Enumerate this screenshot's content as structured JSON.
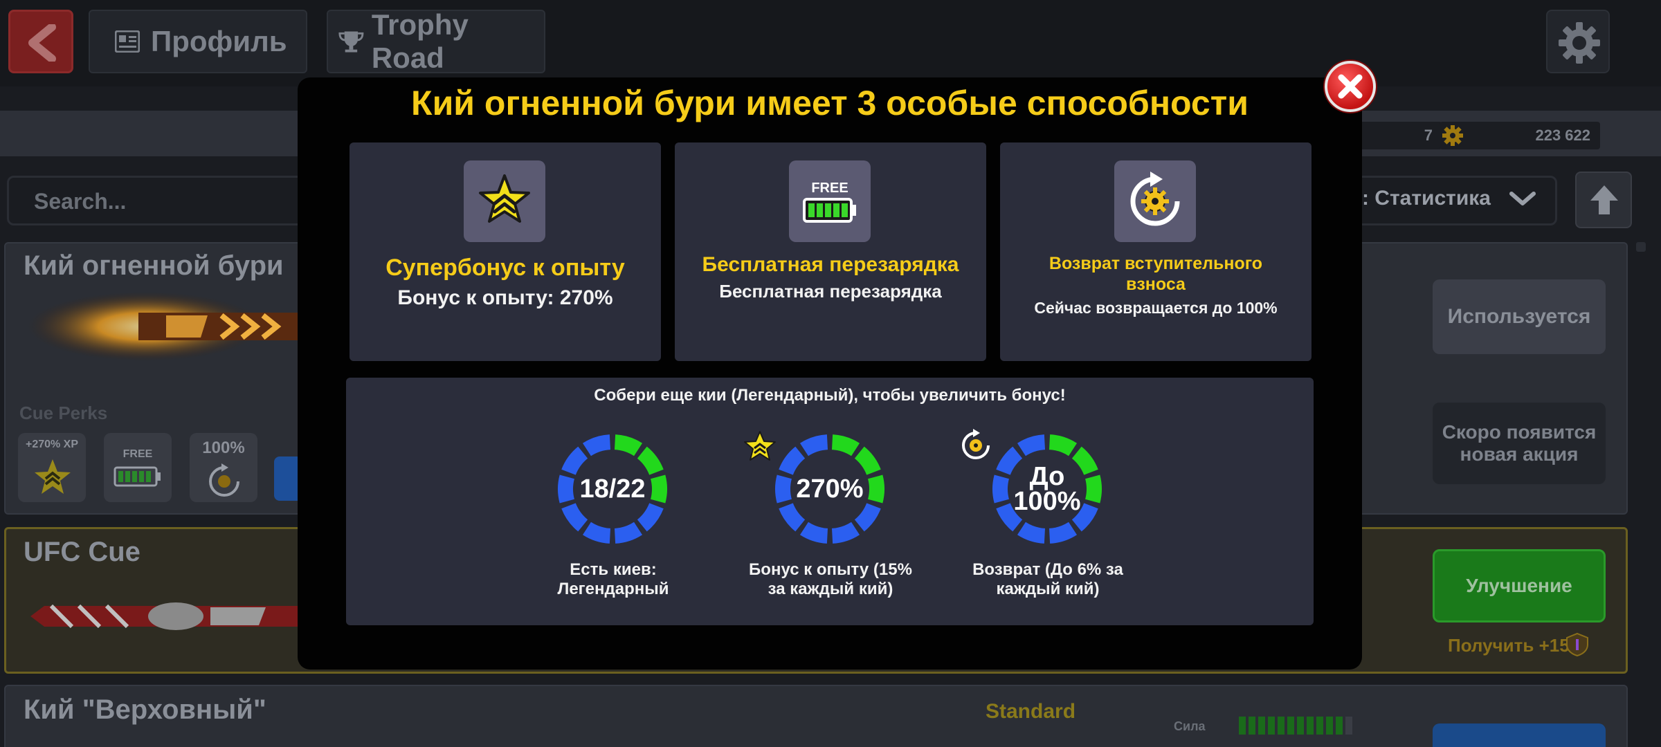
{
  "topbar": {
    "profile_tab": "Профиль",
    "trophy_tab": "Trophy Road"
  },
  "stats": {
    "level_value": "7",
    "coins_value": "223 622"
  },
  "search": {
    "placeholder": "Search...",
    "sort_label": "о: Статистика"
  },
  "cue_list": {
    "card1_title": "Кий огненной бури",
    "cue_perks_label": "Cue Perks",
    "perk_tile_xp": "+270% XP",
    "perk_tile_free": "FREE",
    "perk_tile_refund": "100%",
    "used_button": "Используется",
    "soon_button": "Скоро появится новая акция",
    "card2_title": "UFC Cue",
    "upgrade_button": "Улучшение",
    "get_label": "Получить +15",
    "card3_title": "Кий \"Верховный\"",
    "standard_label": "Standard",
    "power_label": "Сила",
    "power_level": 0.9
  },
  "modal": {
    "title": "Кий огненной бури имеет 3 особые способности",
    "features": [
      {
        "title": "Супербонус к опыту",
        "subtitle": "Бонус к опыту: 270%",
        "icon": "star-chevron-icon"
      },
      {
        "title": "Бесплатная перезарядка",
        "subtitle": "Бесплатная перезарядка",
        "icon": "battery-icon",
        "icon_text": "FREE"
      },
      {
        "title": "Возврат вступительного взноса",
        "subtitle": "Сейчас возвращается до 100%",
        "icon": "refund-gear-icon"
      }
    ],
    "collect_title": "Собери еще кии (Легендарный), чтобы увеличить бонус!",
    "rings": [
      {
        "value": "18/22",
        "caption": "Есть киев: Легендарный",
        "filled_segments": 3
      },
      {
        "value": "270%",
        "caption": "Бонус к опыту (15% за каждый кий)",
        "filled_segments": 3
      },
      {
        "value": "До 100%",
        "caption": "Возврат (До 6% за каждый кий)",
        "filled_segments": 3
      }
    ]
  },
  "colors": {
    "accent_yellow": "#f6cc19",
    "ring_blue": "#2b5ff0",
    "ring_green": "#22d81c",
    "panel": "#2b2d3b",
    "close_red": "#d01818"
  }
}
